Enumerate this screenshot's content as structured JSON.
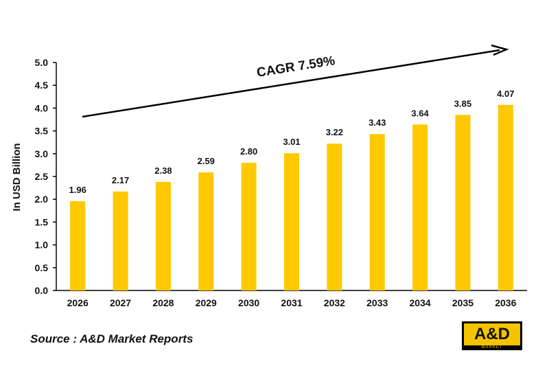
{
  "chart_data": {
    "type": "bar",
    "categories": [
      "2026",
      "2027",
      "2028",
      "2029",
      "2030",
      "2031",
      "2032",
      "2033",
      "2034",
      "2035",
      "2036"
    ],
    "values": [
      1.96,
      2.17,
      2.38,
      2.59,
      2.8,
      3.01,
      3.22,
      3.43,
      3.64,
      3.85,
      4.07
    ],
    "value_labels": [
      "1.96",
      "2.17",
      "2.38",
      "2.59",
      "2.80",
      "3.01",
      "3.22",
      "3.43",
      "3.64",
      "3.85",
      "4.07"
    ],
    "ylabel": "In USD Billion",
    "xlabel": "",
    "ylim": [
      0,
      5.0
    ],
    "yticks": [
      "0.0",
      "0.5",
      "1.0",
      "1.5",
      "2.0",
      "2.5",
      "3.0",
      "3.5",
      "4.0",
      "4.5",
      "5.0"
    ],
    "grid": false,
    "annotation": "CAGR 7.59%",
    "bar_color": "#ffc800"
  },
  "footer": {
    "source": "Source : A&D Market Reports"
  },
  "logo": {
    "text": "A&D",
    "subtext": "MARKET"
  }
}
